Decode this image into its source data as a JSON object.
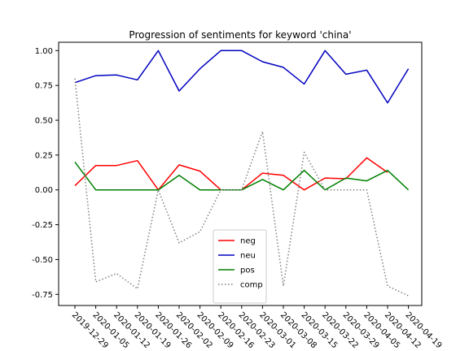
{
  "chart_data": {
    "type": "line",
    "title": "Progression of sentiments for keyword 'china'",
    "xlabel": "",
    "ylabel": "",
    "categories": [
      "2019-12-29",
      "2020-01-05",
      "2020-01-12",
      "2020-01-19",
      "2020-01-26",
      "2020-02-02",
      "2020-02-09",
      "2020-02-16",
      "2020-02-23",
      "2020-03-01",
      "2020-03-08",
      "2020-03-15",
      "2020-03-22",
      "2020-03-29",
      "2020-04-05",
      "2020-04-12",
      "2020-04-19"
    ],
    "yticks": [
      "-0.75",
      "-0.50",
      "-0.25",
      "0.00",
      "0.25",
      "0.50",
      "0.75",
      "1.00"
    ],
    "ylim": [
      -0.83,
      1.06
    ],
    "grid": false,
    "legend_position": "lower-center",
    "series": [
      {
        "name": "neg",
        "color": "#ff0000",
        "style": "solid",
        "values": [
          0.03,
          0.175,
          0.175,
          0.21,
          0.0,
          0.18,
          0.135,
          0.0,
          0.0,
          0.12,
          0.105,
          0.0,
          0.085,
          0.08,
          0.23,
          0.125,
          null
        ]
      },
      {
        "name": "neu",
        "color": "#0000bf",
        "style": "solid",
        "values": [
          0.77,
          0.82,
          0.825,
          0.79,
          1.0,
          0.71,
          0.87,
          1.0,
          1.0,
          0.92,
          0.88,
          0.76,
          1.0,
          0.83,
          0.86,
          0.625,
          0.87
        ]
      },
      {
        "name": "pos",
        "color": "#008000",
        "style": "solid",
        "values": [
          0.2,
          0.0,
          0.0,
          0.0,
          0.0,
          0.105,
          0.0,
          0.0,
          0.0,
          0.075,
          0.0,
          0.14,
          0.0,
          0.085,
          0.065,
          0.14,
          0.0
        ]
      },
      {
        "name": "comp",
        "color": "#808080",
        "style": "dotted",
        "values": [
          0.8,
          -0.66,
          -0.6,
          -0.71,
          0.0,
          -0.38,
          -0.3,
          0.0,
          0.0,
          0.42,
          -0.69,
          0.27,
          0.0,
          0.0,
          0.0,
          -0.69,
          -0.76
        ]
      }
    ]
  }
}
